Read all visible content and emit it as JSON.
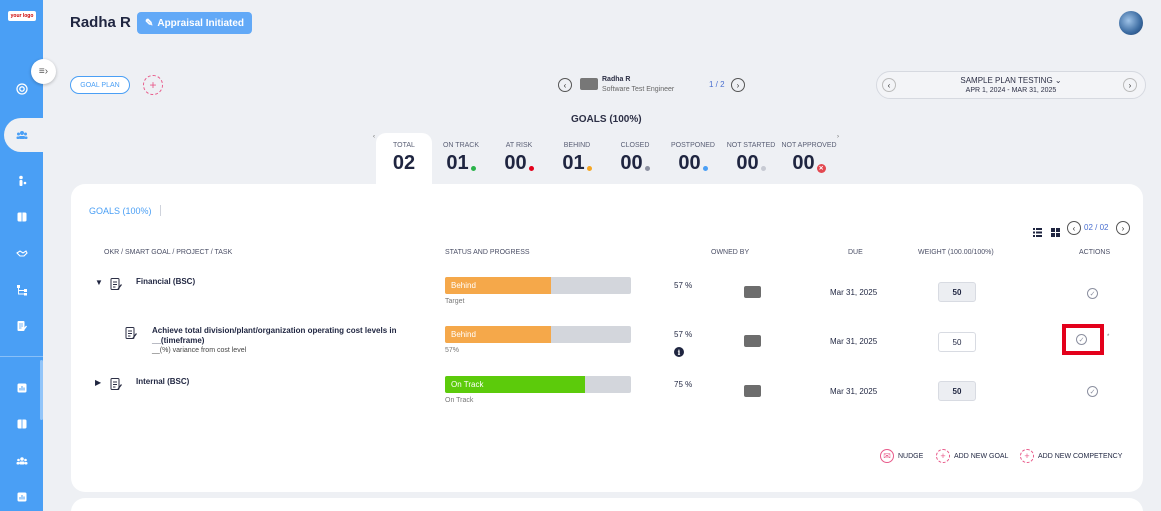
{
  "sidebar": {
    "logo_text": "your logo",
    "items": [
      {
        "icon": "target-icon"
      },
      {
        "icon": "team-icon"
      },
      {
        "icon": "person-icon"
      },
      {
        "icon": "book-icon"
      },
      {
        "icon": "handshake-icon"
      },
      {
        "icon": "org-tree-icon"
      },
      {
        "icon": "document-edit-icon"
      },
      {
        "icon": "chart-icon"
      },
      {
        "icon": "book-icon"
      },
      {
        "icon": "group-icon"
      },
      {
        "icon": "chart-icon"
      }
    ],
    "accent_color": "#4a9ff5"
  },
  "header": {
    "user_name": "Radha R",
    "status_button": "Appraisal Initiated"
  },
  "goal_plan": {
    "button_label": "GOAL PLAN"
  },
  "employee": {
    "name": "Radha R",
    "title": "Software Test Engineer",
    "page": "1 / 2"
  },
  "plan": {
    "name": "SAMPLE PLAN TESTING",
    "dates": "APR 1, 2024 - MAR 31, 2025"
  },
  "goals_heading": "GOALS (100%)",
  "stats": [
    {
      "label": "TOTAL",
      "value": "02",
      "dot": ""
    },
    {
      "label": "ON TRACK",
      "value": "01",
      "dot": "#2bb34a"
    },
    {
      "label": "AT RISK",
      "value": "00",
      "dot": "#e3001b"
    },
    {
      "label": "BEHIND",
      "value": "01",
      "dot": "#f5a623"
    },
    {
      "label": "CLOSED",
      "value": "00",
      "dot": "#8c90a0"
    },
    {
      "label": "POSTPONED",
      "value": "00",
      "dot": "#4a9ff5"
    },
    {
      "label": "NOT STARTED",
      "value": "00",
      "dot": "#c7cad3"
    },
    {
      "label": "NOT APPROVED",
      "value": "00",
      "dot": "#e34850"
    }
  ],
  "card": {
    "title": "GOALS (100%)",
    "page_indicator": "02 / 02",
    "columns": {
      "goal": "OKR / SMART GOAL / PROJECT / TASK",
      "status": "STATUS AND PROGRESS",
      "owned_by": "OWNED BY",
      "due": "DUE",
      "weight": "WEIGHT (100.00/100%)",
      "actions": "ACTIONS"
    },
    "rows": [
      {
        "title": "Financial (BSC)",
        "subtitle": "",
        "status": "Behind",
        "status_color": "#f5a84a",
        "progress": 0.57,
        "caption": "Target",
        "percent": "57 %",
        "due": "Mar 31, 2025",
        "weight": "50"
      },
      {
        "title": "Achieve total division/plant/organization operating cost levels in __(timeframe)",
        "subtitle": "__(%) variance from cost level",
        "status": "Behind",
        "status_color": "#f5a84a",
        "progress": 0.57,
        "caption": "57%",
        "percent": "57 %",
        "due": "Mar 31, 2025",
        "weight": "50"
      },
      {
        "title": "Internal (BSC)",
        "subtitle": "",
        "status": "On Track",
        "status_color": "#5ccb0b",
        "progress": 0.75,
        "caption": "On Track",
        "percent": "75 %",
        "due": "Mar 31, 2025",
        "weight": "50"
      }
    ],
    "footer": {
      "nudge": "NUDGE",
      "add_goal": "ADD NEW GOAL",
      "add_competency": "ADD NEW COMPETENCY"
    }
  }
}
